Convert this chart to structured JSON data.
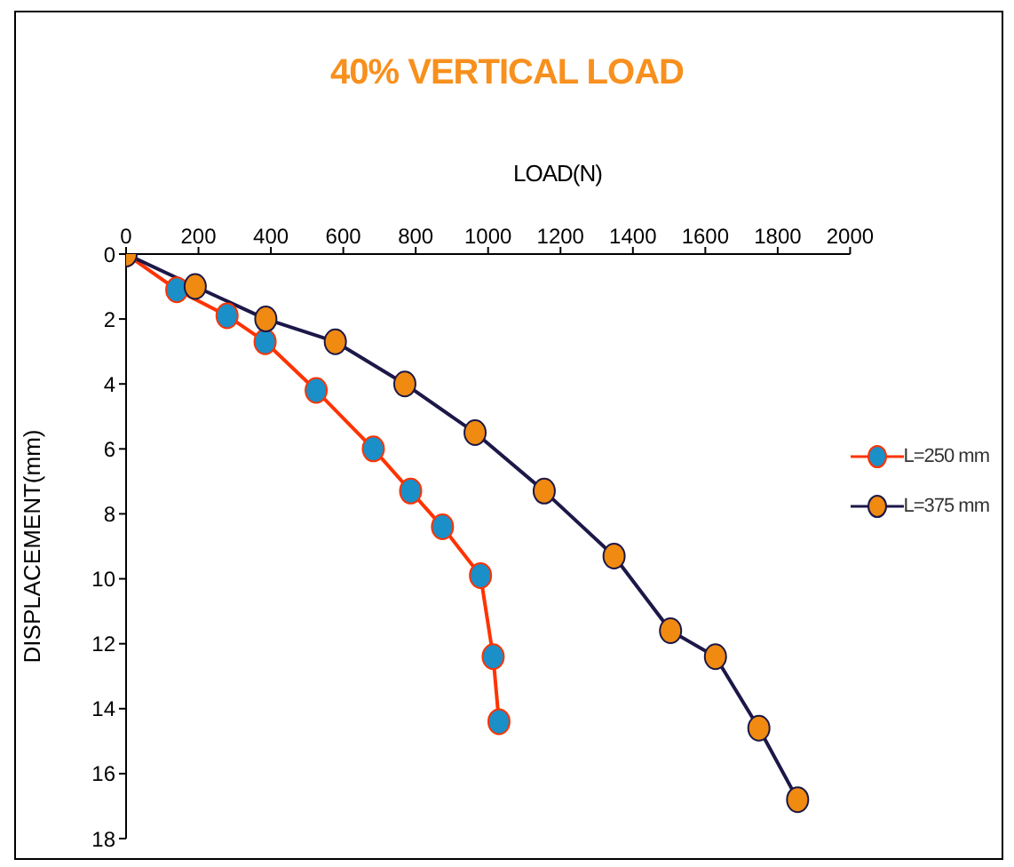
{
  "chart_data": {
    "type": "line",
    "title": "40% VERTICAL LOAD",
    "xlabel": "LOAD(N)",
    "ylabel": "DISPLACEMENT(mm)",
    "xlim": [
      0,
      2000
    ],
    "xticks": [
      0,
      200,
      400,
      600,
      800,
      1000,
      1200,
      1400,
      1600,
      1800,
      2000
    ],
    "ylim": [
      18,
      0
    ],
    "yticks": [
      0,
      2,
      4,
      6,
      8,
      10,
      12,
      14,
      16,
      18
    ],
    "grid": false,
    "legend": "right",
    "marker": "circle",
    "line_style": "solid",
    "series": [
      {
        "name": "L=250 mm",
        "color": "#ff3300",
        "x": [
          0,
          140,
          279,
          384,
          525,
          683,
          786,
          874,
          979,
          1014,
          1030
        ],
        "values": [
          0,
          1.1,
          1.9,
          2.7,
          4.2,
          6.0,
          7.3,
          8.4,
          9.9,
          12.4,
          14.4
        ]
      },
      {
        "name": "L=375 mm",
        "color": "#1c1848",
        "x": [
          0,
          191,
          386,
          578,
          770,
          964,
          1155,
          1348,
          1504,
          1628,
          1748,
          1855
        ],
        "values": [
          0,
          1.0,
          2.0,
          2.7,
          4.0,
          5.5,
          7.3,
          9.3,
          11.6,
          12.4,
          14.6,
          16.8
        ]
      }
    ]
  }
}
